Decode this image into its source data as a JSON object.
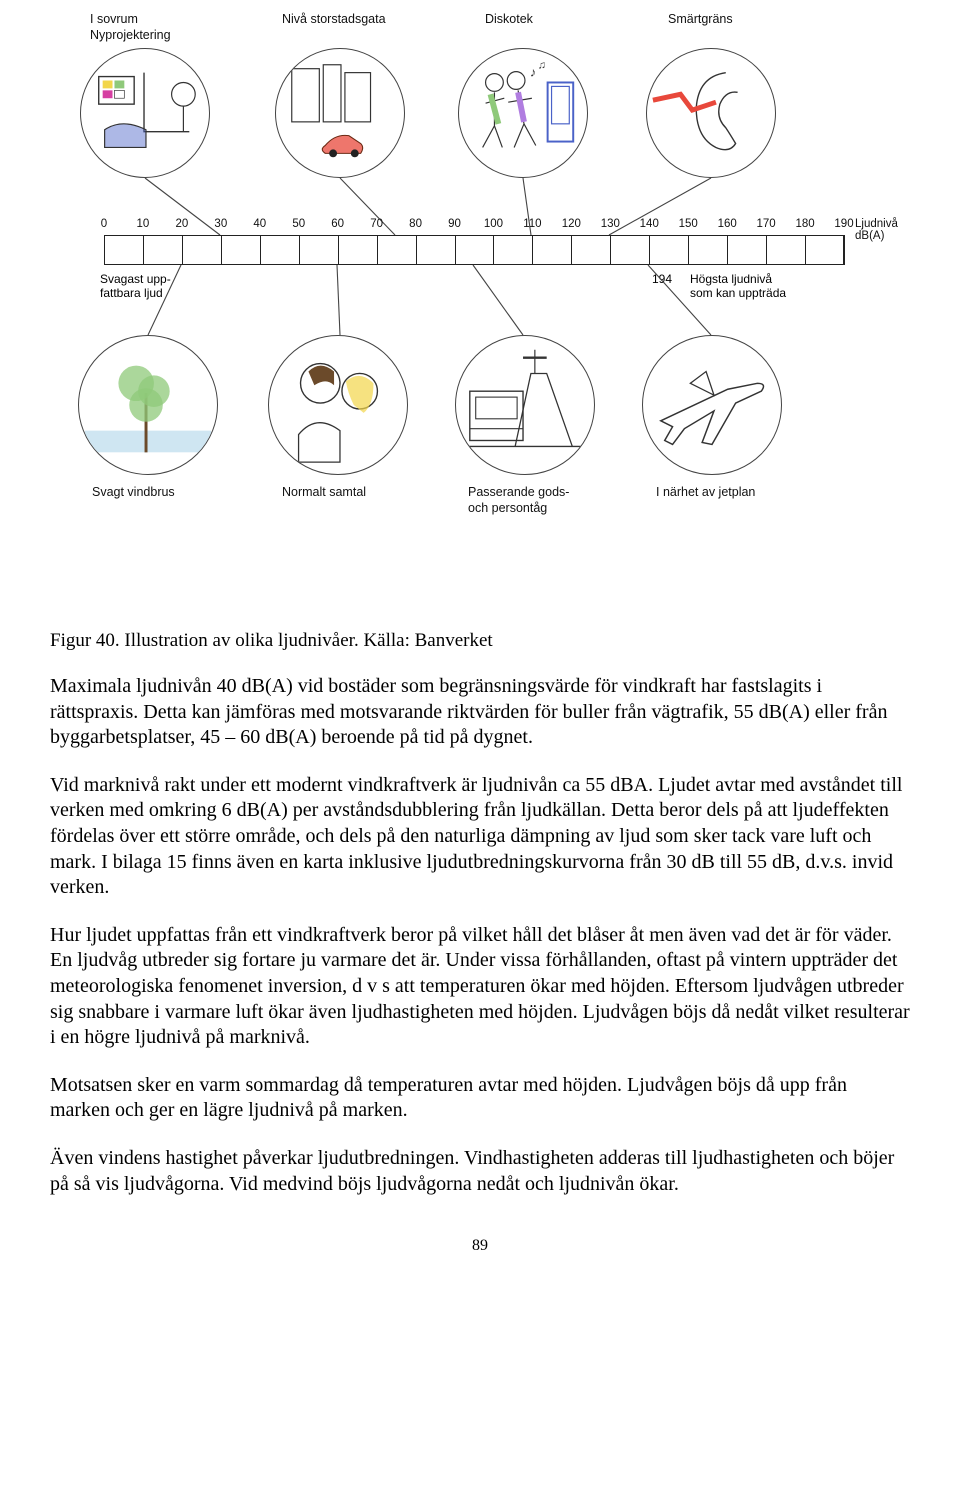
{
  "infographic": {
    "axis_label": "Ljudnivå dB(A)",
    "ticks": [
      0,
      10,
      20,
      30,
      40,
      50,
      60,
      70,
      80,
      90,
      100,
      110,
      120,
      130,
      140,
      150,
      160,
      170,
      180,
      190
    ],
    "side_left": "Svagast upp-\nfattbara ljud",
    "side_right_num": "194",
    "side_right": "Högsta ljudnivå\nsom kan uppträda",
    "top": [
      {
        "label": "I sovrum\nNyprojektering",
        "indicator_tick": 30
      },
      {
        "label": "Nivå storstadsgata",
        "indicator_tick": 75
      },
      {
        "label": "Diskotek",
        "indicator_tick": 110
      },
      {
        "label": "Smärtgräns",
        "indicator_tick": 130
      }
    ],
    "bottom": [
      {
        "label": "Svagt vindbrus",
        "indicator_tick": 20
      },
      {
        "label": "Normalt samtal",
        "indicator_tick": 60
      },
      {
        "label": "Passerande gods-\noch persontåg",
        "indicator_tick": 95
      },
      {
        "label": "I närhet av jetplan",
        "indicator_tick": 140
      }
    ],
    "colors": {
      "circle_border": "#444444",
      "text": "#111111",
      "scale_border": "#222222",
      "accent_red": "#e8483b",
      "accent_green": "#8fc97a",
      "accent_blue": "#4a62c8",
      "accent_yellow": "#f2d64a",
      "accent_magenta": "#d63fa2",
      "accent_brown": "#6b4a2a"
    }
  },
  "caption": "Figur 40. Illustration av olika ljudnivåer. Källa: Banverket",
  "paras": [
    "Maximala ljudnivån 40 dB(A) vid bostäder som begränsningsvärde för vindkraft har fastslagits i rättspraxis. Detta kan jämföras med motsvarande riktvärden för buller från vägtrafik, 55 dB(A) eller från byggarbetsplatser, 45 – 60 dB(A) beroende på tid på dygnet.",
    "Vid marknivå rakt under ett modernt vindkraftverk är ljudnivån ca 55 dBA. Ljudet avtar med avståndet till verken med omkring 6 dB(A) per avståndsdubblering från ljudkällan. Detta beror dels på att ljudeffekten fördelas över ett större område, och dels på den naturliga dämpning av ljud som sker tack vare luft och mark. I bilaga 15 finns även en karta inklusive ljudutbredningskurvorna från 30 dB till 55 dB, d.v.s. invid verken.",
    "Hur ljudet uppfattas från ett vindkraftverk beror på vilket håll det blåser åt men även vad det är för väder. En ljudvåg utbreder sig fortare ju varmare det är. Under vissa förhållanden, oftast på vintern uppträder det meteorologiska fenomenet inversion, d v s att temperaturen ökar med höjden. Eftersom ljudvågen utbreder sig snabbare i varmare luft ökar även ljudhastigheten med höjden. Ljudvågen böjs då nedåt vilket resulterar i en högre ljudnivå på marknivå.",
    "Motsatsen sker en varm sommardag då temperaturen avtar med höjden. Ljudvågen böjs då upp från marken och ger en lägre ljudnivå på marken.",
    "Även vindens hastighet påverkar ljudutbredningen. Vindhastigheten adderas till ljudhastigheten och böjer på så vis ljudvågorna. Vid medvind böjs ljudvågorna nedåt och ljudnivån ökar."
  ],
  "page_number": "89"
}
